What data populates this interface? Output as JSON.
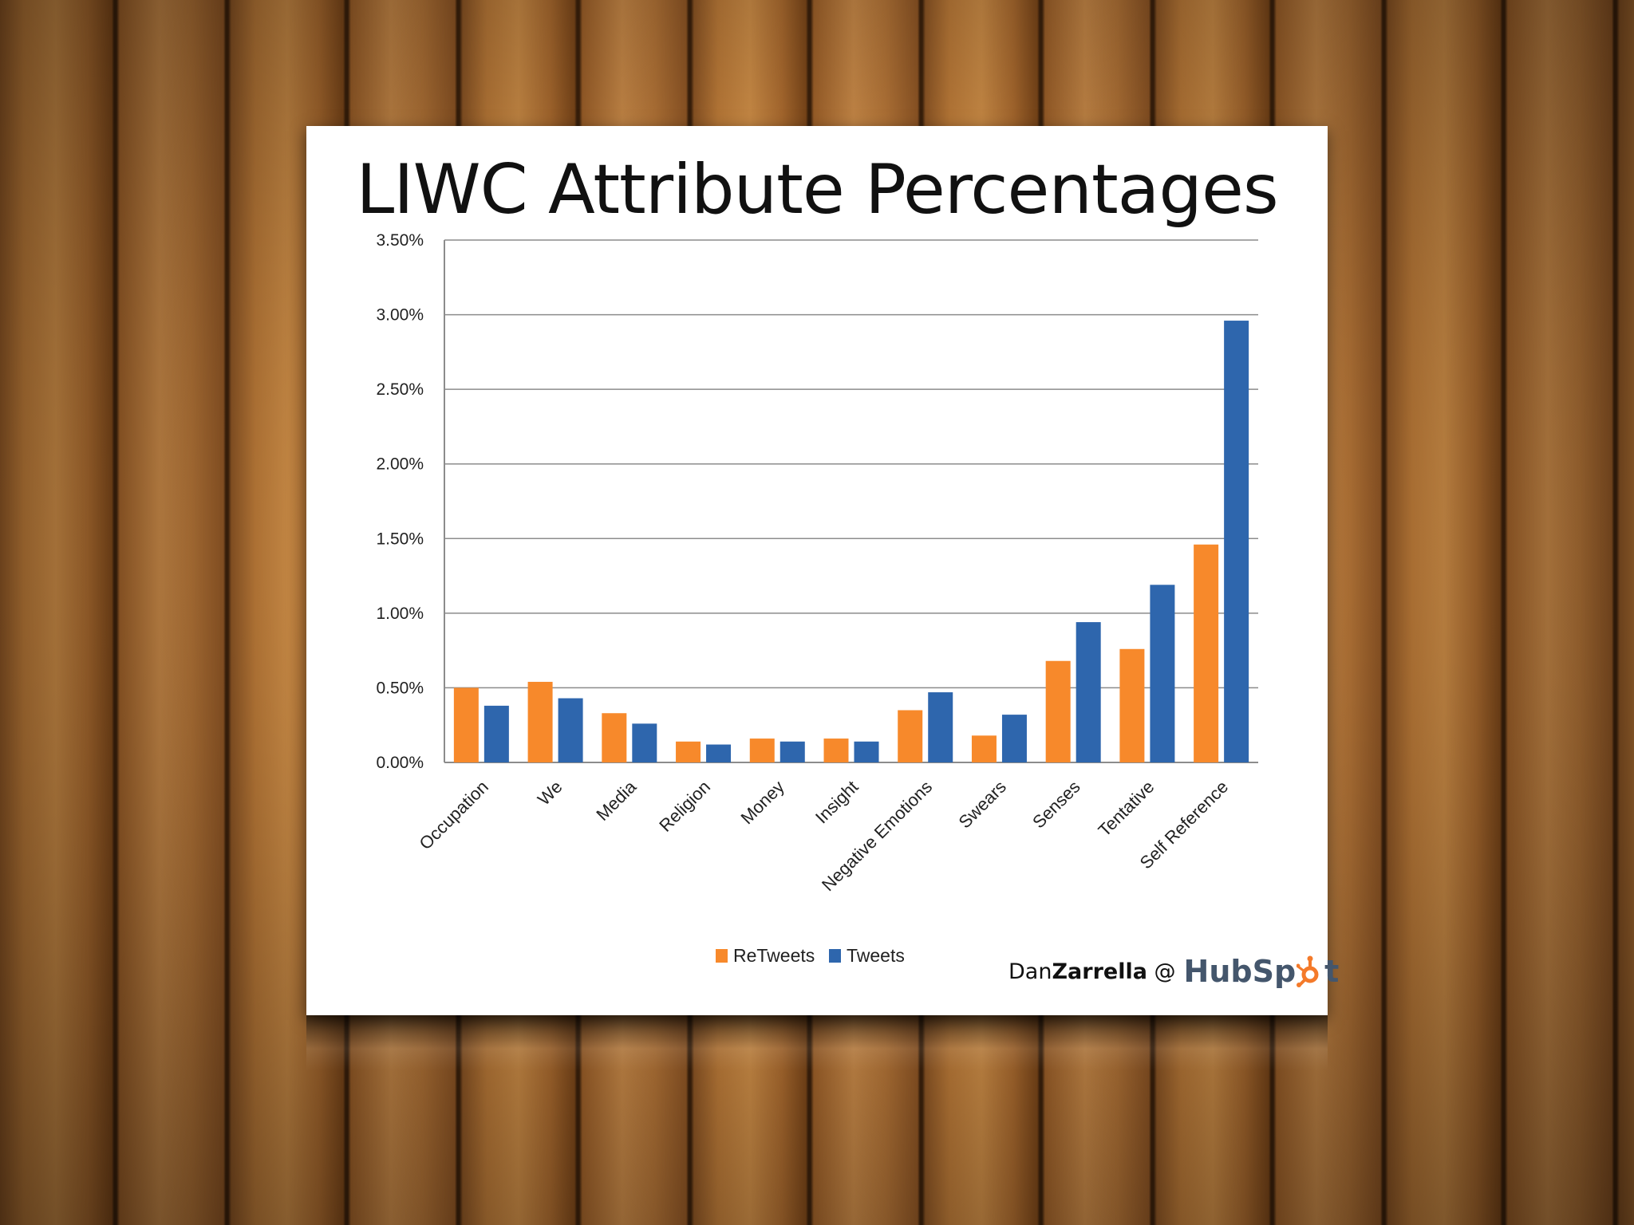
{
  "colors": {
    "retweets": "#f7892b",
    "tweets": "#2e66ad",
    "grid": "#8c8c8c",
    "hubspot_orange": "#f47a2a",
    "hubspot_gray": "#44566c"
  },
  "credit": {
    "first": "Dan",
    "last": "Zarrella",
    "at": "@",
    "logo_text": "HubSpot",
    "logo_prefix": "HubSp",
    "logo_suffix": "t"
  },
  "chart_data": {
    "type": "bar",
    "title": "LIWC Attribute Percentages",
    "xlabel": "",
    "ylabel": "",
    "ylim": [
      0,
      0.035
    ],
    "y_ticks": [
      "0.00%",
      "0.50%",
      "1.00%",
      "1.50%",
      "2.00%",
      "2.50%",
      "3.00%",
      "3.50%"
    ],
    "grid": true,
    "legend_placement": "bottom",
    "categories": [
      "Occupation",
      "We",
      "Media",
      "Religion",
      "Money",
      "Insight",
      "Negative Emotions",
      "Swears",
      "Senses",
      "Tentative",
      "Self Reference"
    ],
    "series": [
      {
        "name": "ReTweets",
        "values": [
          0.005,
          0.0054,
          0.0033,
          0.0014,
          0.0016,
          0.0016,
          0.0035,
          0.0018,
          0.0068,
          0.0076,
          0.0146
        ]
      },
      {
        "name": "Tweets",
        "values": [
          0.0038,
          0.0043,
          0.0026,
          0.0012,
          0.0014,
          0.0014,
          0.0047,
          0.0032,
          0.0094,
          0.0119,
          0.0296
        ]
      }
    ]
  }
}
